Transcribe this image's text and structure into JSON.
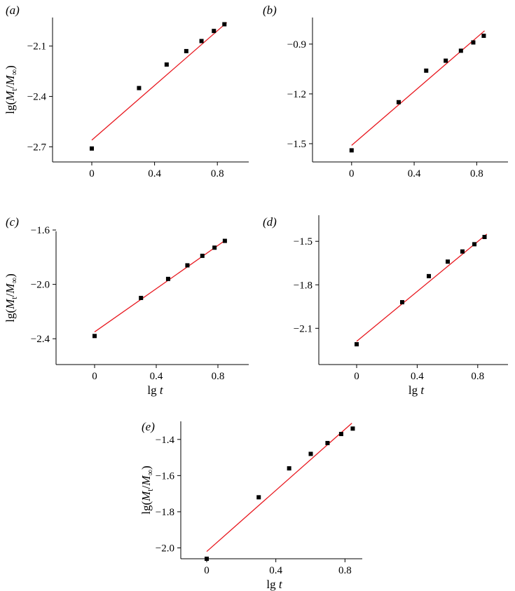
{
  "figure": {
    "colors": {
      "fit_line": "#e8171e",
      "points": "#000000",
      "axes": "#000000"
    }
  },
  "chart_data": [
    {
      "panel": "(a)",
      "type": "scatter",
      "xlabel": "",
      "ylabel": "lg(Mt/M∞)",
      "ylabel_parts": {
        "prefix": "lg(",
        "main": "M",
        "sub": "t",
        "slash": "/",
        "main2": "M",
        "sub2": "∞",
        "suffix": ")"
      },
      "xlim": [
        -0.25,
        1.0
      ],
      "ylim": [
        -2.79,
        -1.93
      ],
      "xticks": [
        0,
        0.4,
        0.8
      ],
      "xtick_labels": [
        "0",
        "0.4",
        "0.8"
      ],
      "yticks": [
        -2.7,
        -2.4,
        -2.1
      ],
      "ytick_labels": [
        "−2.7",
        "−2.4",
        "−2.1"
      ],
      "x": [
        0,
        0.301,
        0.477,
        0.602,
        0.699,
        0.778,
        0.845
      ],
      "y": [
        -2.71,
        -2.35,
        -2.21,
        -2.13,
        -2.07,
        -2.01,
        -1.97
      ],
      "fit": {
        "x": [
          0,
          0.86
        ],
        "y": [
          -2.66,
          -1.96
        ]
      }
    },
    {
      "panel": "(b)",
      "type": "scatter",
      "xlabel": "",
      "ylabel": "",
      "xlim": [
        -0.25,
        1.0
      ],
      "ylim": [
        -1.61,
        -0.74
      ],
      "xticks": [
        0,
        0.4,
        0.8
      ],
      "xtick_labels": [
        "0",
        "0.4",
        "0.8"
      ],
      "yticks": [
        -1.5,
        -1.2,
        -0.9
      ],
      "ytick_labels": [
        "−1.5",
        "−1.2",
        "−0.9"
      ],
      "x": [
        0,
        0.301,
        0.477,
        0.602,
        0.699,
        0.778,
        0.845
      ],
      "y": [
        -1.54,
        -1.25,
        -1.06,
        -1.0,
        -0.94,
        -0.89,
        -0.85
      ],
      "fit": {
        "x": [
          0,
          0.85
        ],
        "y": [
          -1.51,
          -0.82
        ]
      }
    },
    {
      "panel": "(c)",
      "type": "scatter",
      "xlabel": "lg t",
      "ylabel": "lg(Mt/M∞)",
      "ylabel_parts": {
        "prefix": "lg(",
        "main": "M",
        "sub": "t",
        "slash": "/",
        "main2": "M",
        "sub2": "∞",
        "suffix": ")"
      },
      "xlim": [
        -0.25,
        1.0
      ],
      "ylim": [
        -2.59,
        -1.61
      ],
      "xticks": [
        0,
        0.4,
        0.8
      ],
      "xtick_labels": [
        "0",
        "0.4",
        "0.8"
      ],
      "yticks": [
        -2.4,
        -2.0,
        -1.6
      ],
      "ytick_labels": [
        "−2.4",
        "−2.0",
        "−1.6"
      ],
      "x": [
        0,
        0.301,
        0.477,
        0.602,
        0.699,
        0.778,
        0.845
      ],
      "y": [
        -2.38,
        -2.1,
        -1.96,
        -1.86,
        -1.79,
        -1.73,
        -1.68
      ],
      "fit": {
        "x": [
          0,
          0.855
        ],
        "y": [
          -2.35,
          -1.67
        ]
      }
    },
    {
      "panel": "(d)",
      "type": "scatter",
      "xlabel": "lg t",
      "ylabel": "",
      "xlim": [
        -0.25,
        1.0
      ],
      "ylim": [
        -2.35,
        -1.32
      ],
      "xticks": [
        0,
        0.4,
        0.8
      ],
      "xtick_labels": [
        "0",
        "0.4",
        "0.8"
      ],
      "yticks": [
        -2.1,
        -1.8,
        -1.5
      ],
      "ytick_labels": [
        "−2.1",
        "−1.8",
        "−1.5"
      ],
      "x": [
        0,
        0.301,
        0.477,
        0.602,
        0.699,
        0.778,
        0.845
      ],
      "y": [
        -2.21,
        -1.92,
        -1.74,
        -1.64,
        -1.57,
        -1.52,
        -1.47
      ],
      "fit": {
        "x": [
          0,
          0.86
        ],
        "y": [
          -2.19,
          -1.45
        ]
      }
    },
    {
      "panel": "(e)",
      "type": "scatter",
      "xlabel": "lg t",
      "ylabel": "lg(Mt/M∞)",
      "ylabel_parts": {
        "prefix": "lg(",
        "main": "M",
        "sub": "t",
        "slash": "/",
        "main2": "M",
        "sub2": "∞",
        "suffix": ")"
      },
      "xlim": [
        -0.15,
        0.9
      ],
      "ylim": [
        -2.06,
        -1.3
      ],
      "xticks": [
        0,
        0.4,
        0.8
      ],
      "xtick_labels": [
        "0",
        "0.4",
        "0.8"
      ],
      "yticks": [
        -2.0,
        -1.8,
        -1.6,
        -1.4
      ],
      "ytick_labels": [
        "−2.0",
        "−1.8",
        "−1.6",
        "−1.4"
      ],
      "x": [
        0,
        0.301,
        0.477,
        0.602,
        0.699,
        0.778,
        0.845
      ],
      "y": [
        -2.06,
        -1.72,
        -1.56,
        -1.48,
        -1.42,
        -1.37,
        -1.34
      ],
      "fit": {
        "x": [
          0,
          0.84
        ],
        "y": [
          -2.02,
          -1.31
        ]
      }
    }
  ]
}
